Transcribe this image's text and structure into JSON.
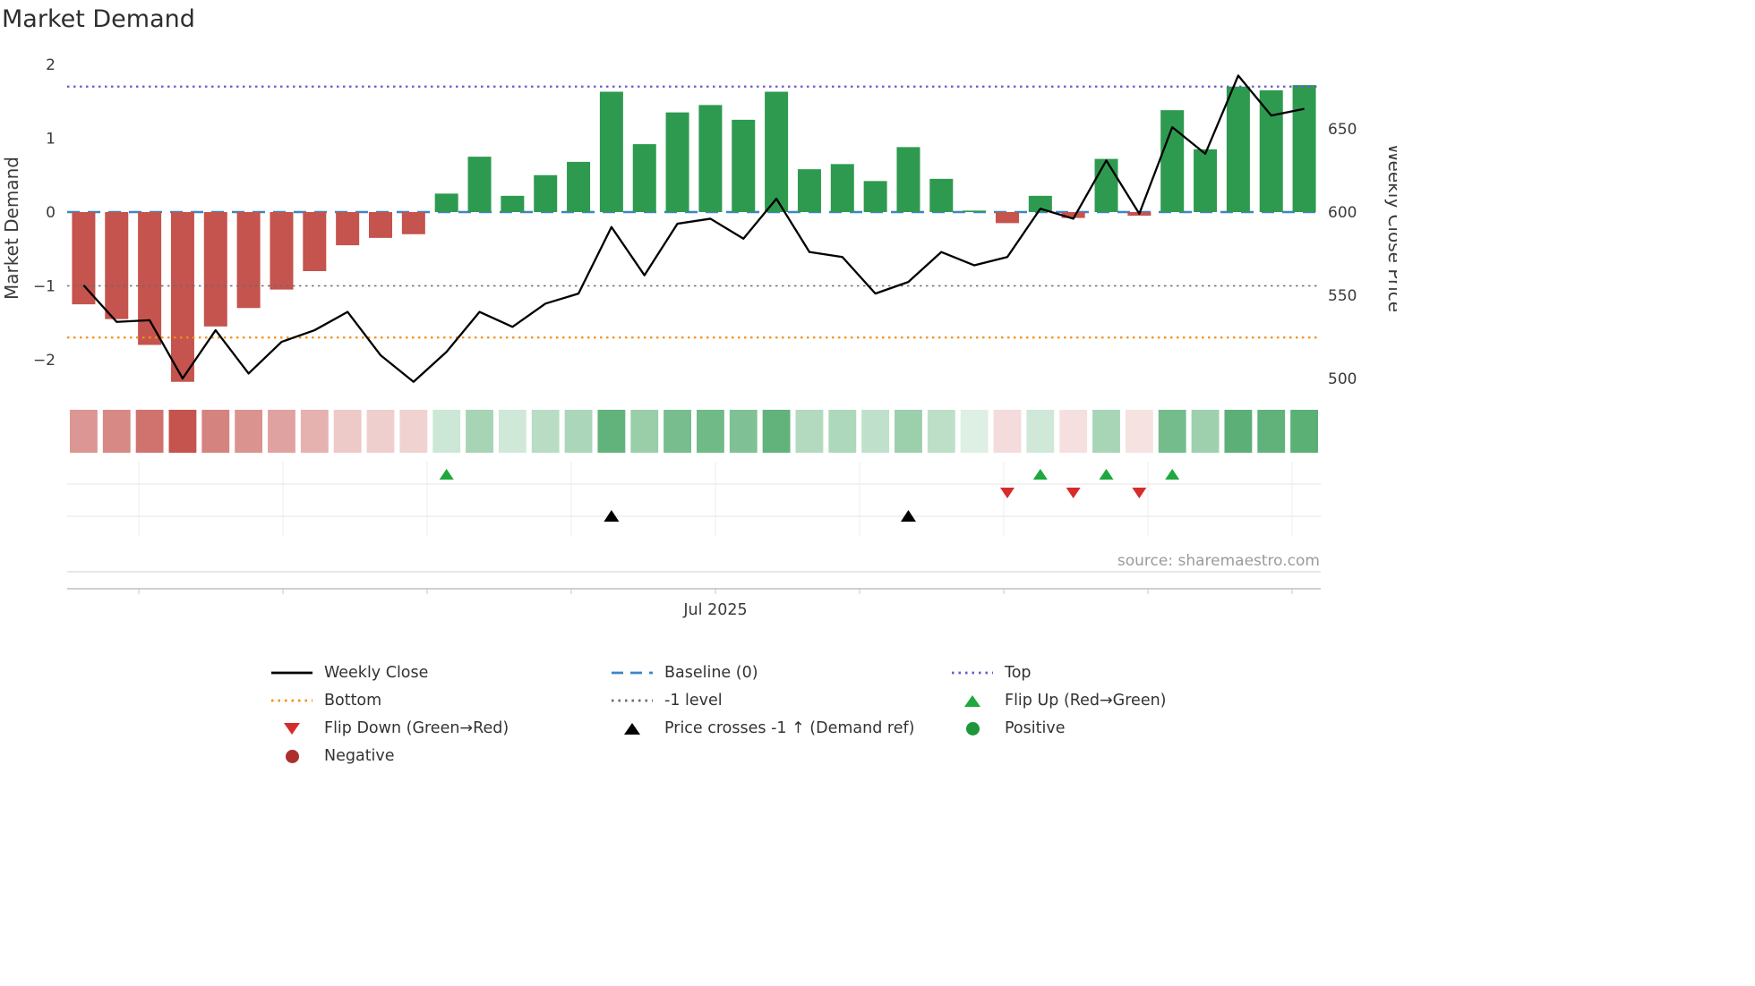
{
  "title": "Market Demand",
  "source_note": "source: sharemaestro.com",
  "axes": {
    "left_label": "Market Demand",
    "right_label": "Weekly Close Price",
    "left_ticks": [
      {
        "label": "2",
        "value": 2
      },
      {
        "label": "1",
        "value": 1
      },
      {
        "label": "0",
        "value": 0
      },
      {
        "label": "−1",
        "value": -1
      },
      {
        "label": "−2",
        "value": -2
      }
    ],
    "right_ticks": [
      {
        "label": "650",
        "value": 650
      },
      {
        "label": "600",
        "value": 600
      },
      {
        "label": "550",
        "value": 550
      },
      {
        "label": "500",
        "value": 500
      }
    ],
    "x_tick_label": "Jul 2025"
  },
  "chart_data": {
    "type": "bar+line",
    "title": "Market Demand",
    "x_weeks": [
      1,
      2,
      3,
      4,
      5,
      6,
      7,
      8,
      9,
      10,
      11,
      12,
      13,
      14,
      15,
      16,
      17,
      18,
      19,
      20,
      21,
      22,
      23,
      24,
      25,
      26,
      27,
      28,
      29,
      30,
      31,
      32,
      33,
      34,
      35,
      36,
      37,
      38
    ],
    "series": [
      {
        "name": "Market Demand",
        "type": "bar",
        "axis": "left",
        "values": [
          -1.25,
          -1.45,
          -1.8,
          -2.3,
          -1.55,
          -1.3,
          -1.05,
          -0.8,
          -0.45,
          -0.35,
          -0.3,
          0.25,
          0.75,
          0.22,
          0.5,
          0.68,
          1.63,
          0.92,
          1.35,
          1.45,
          1.25,
          1.63,
          0.58,
          0.65,
          0.42,
          0.88,
          0.45,
          0.02,
          -0.15,
          0.22,
          -0.08,
          0.72,
          -0.05,
          1.38,
          0.85,
          1.7,
          1.65,
          1.72
        ]
      },
      {
        "name": "Weekly Close",
        "type": "line",
        "axis": "right",
        "values": [
          556,
          534,
          535,
          500,
          529,
          503,
          522,
          529,
          540,
          514,
          498,
          516,
          540,
          531,
          545,
          551,
          591,
          562,
          593,
          596,
          584,
          608,
          576,
          573,
          551,
          558,
          576,
          568,
          573,
          602,
          596,
          631,
          599,
          651,
          635,
          682,
          658,
          662
        ]
      }
    ],
    "levels": {
      "top": 1.7,
      "baseline": 0,
      "minus_one": -1,
      "bottom": -1.7
    },
    "markers": {
      "flip_up_weeks": [
        12,
        30,
        32,
        34
      ],
      "flip_down_weeks": [
        29,
        31,
        33
      ],
      "price_cross_up_weeks": [
        17,
        26
      ]
    },
    "ylim_left": [
      -2.42,
      2.02
    ],
    "ylim_right": [
      492,
      690
    ],
    "legend_position": "bottom",
    "grid": "marker-rows-only",
    "colors": {
      "positive_bar": "#2e9a50",
      "negative_bar": "#c5534e",
      "weekly_close": "#000000",
      "baseline": "#3d85c6",
      "top": "#6a5acd",
      "bottom": "#f39019",
      "minus_one": "#6b6b6b",
      "flip_up": "#1fa83d",
      "flip_down": "#d62c2c",
      "price_cross": "#000000",
      "positive_dot": "#1e9639",
      "negative_dot": "#ad2f2c"
    }
  },
  "legend": {
    "items": [
      {
        "label": "Weekly Close",
        "kind": "line-solid",
        "color": "#000000"
      },
      {
        "label": "Baseline (0)",
        "kind": "line-dashed",
        "color": "#3d85c6"
      },
      {
        "label": "Top",
        "kind": "line-dotted",
        "color": "#6a5acd"
      },
      {
        "label": "Bottom",
        "kind": "line-dotted",
        "color": "#f39019"
      },
      {
        "label": "-1 level",
        "kind": "line-dotted",
        "color": "#6b6b6b"
      },
      {
        "label": "Flip Up (Red→Green)",
        "kind": "triangle-up",
        "color": "#1fa83d"
      },
      {
        "label": "Flip Down (Green→Red)",
        "kind": "triangle-down",
        "color": "#d62c2c"
      },
      {
        "label": "Price crosses -1 ↑ (Demand ref)",
        "kind": "triangle-up",
        "color": "#000000"
      },
      {
        "label": "Positive",
        "kind": "circle",
        "color": "#1e9639"
      },
      {
        "label": "Negative",
        "kind": "circle",
        "color": "#ad2f2c"
      }
    ]
  }
}
